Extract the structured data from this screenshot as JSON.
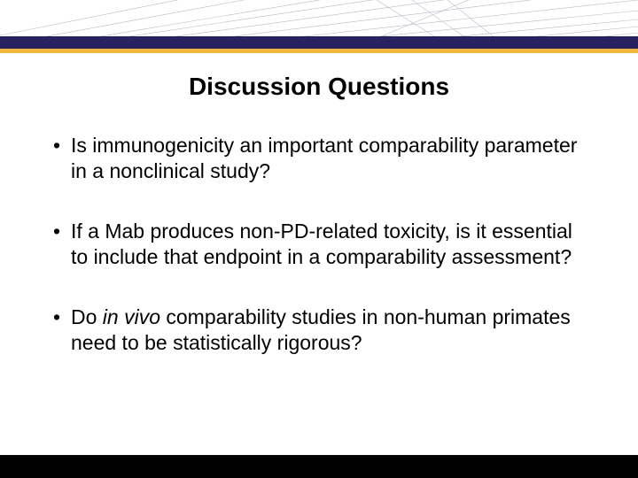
{
  "slide": {
    "title": "Discussion Questions",
    "title_fontsize": 28,
    "title_color": "#000000",
    "body_fontsize": 23,
    "body_color": "#000000",
    "background_color": "#ffffff",
    "header": {
      "purple_band_color": "#2a2260",
      "gold_band_color": "#f0b838",
      "line_color": "#b8b8c8"
    },
    "footer_color": "#000000",
    "bullets": [
      {
        "text_parts": [
          {
            "text": "Is immunogenicity an important comparability parameter in a nonclinical study?",
            "italic": false
          }
        ]
      },
      {
        "text_parts": [
          {
            "text": "If a Mab produces non-PD-related toxicity, is it essential to include that endpoint in a comparability assessment?",
            "italic": false
          }
        ]
      },
      {
        "text_parts": [
          {
            "text": "Do ",
            "italic": false
          },
          {
            "text": "in vivo",
            "italic": true
          },
          {
            "text": " comparability studies in non-human primates need to be statistically rigorous?",
            "italic": false
          }
        ]
      }
    ]
  }
}
